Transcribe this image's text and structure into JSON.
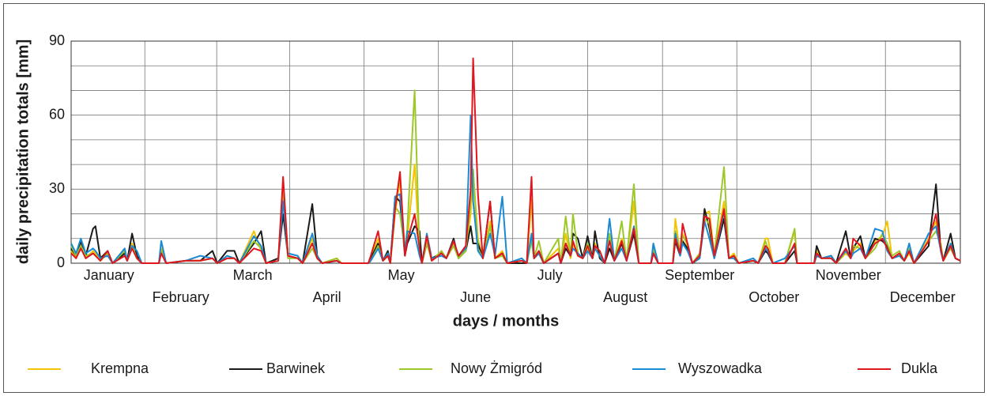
{
  "chart_data": {
    "type": "line",
    "x_label": "days / months",
    "y_label": "daily precipitation totals [mm]",
    "xlim": [
      0,
      365
    ],
    "ylim": [
      0,
      90
    ],
    "yticks": [
      0,
      30,
      60,
      90
    ],
    "y_minor_gridlines": [
      10,
      20,
      40,
      50,
      70,
      80
    ],
    "xticks": [
      {
        "value": 15.5,
        "label": "January"
      },
      {
        "value": 45,
        "label": "February"
      },
      {
        "value": 74.5,
        "label": "March"
      },
      {
        "value": 105,
        "label": "April"
      },
      {
        "value": 135.5,
        "label": "May"
      },
      {
        "value": 166,
        "label": "June"
      },
      {
        "value": 196.5,
        "label": "July"
      },
      {
        "value": 227.5,
        "label": "August"
      },
      {
        "value": 258,
        "label": "September"
      },
      {
        "value": 288.5,
        "label": "October"
      },
      {
        "value": 319,
        "label": "November"
      },
      {
        "value": 349.5,
        "label": "December"
      }
    ],
    "grid": true,
    "legend": "bottom",
    "x": [
      0,
      2,
      4,
      6,
      9,
      10,
      12,
      15,
      17,
      22,
      23,
      25,
      27,
      29,
      36,
      37,
      39,
      47,
      53,
      58,
      60,
      64,
      67,
      69,
      75,
      78,
      80,
      85,
      87,
      89,
      93,
      95,
      99,
      101,
      103,
      109,
      111,
      122,
      123,
      126,
      128,
      130,
      131,
      133,
      135,
      137,
      138,
      141,
      143,
      144,
      146,
      148,
      152,
      154,
      157,
      159,
      162,
      164,
      165,
      167,
      169,
      172,
      174,
      177,
      179,
      185,
      187,
      189,
      190,
      192,
      194,
      200,
      201,
      203,
      205,
      206,
      208,
      210,
      212,
      214,
      215,
      217,
      219,
      221,
      223,
      226,
      228,
      231,
      233,
      238,
      239,
      241,
      247,
      248,
      250,
      251,
      253,
      255,
      258,
      260,
      262,
      264,
      268,
      270,
      272,
      274,
      280,
      282,
      285,
      286,
      288,
      293,
      297,
      298,
      305,
      306,
      308,
      312,
      314,
      318,
      320,
      321,
      324,
      326,
      330,
      333,
      335,
      337,
      340,
      342,
      344,
      346,
      352,
      355,
      357,
      358,
      361,
      363,
      365
    ],
    "series": [
      {
        "name": "Krempna",
        "color": "#f5c400",
        "values": [
          5,
          2,
          8,
          2,
          5,
          4,
          1,
          4,
          0,
          5,
          1,
          8,
          2,
          0,
          0,
          6,
          0,
          1,
          1,
          2,
          0,
          2,
          2,
          0,
          13,
          5,
          0,
          1,
          33,
          3,
          2,
          0,
          10,
          2,
          0,
          2,
          0,
          0,
          2,
          10,
          1,
          3,
          0,
          20,
          34,
          4,
          10,
          40,
          5,
          0,
          9,
          1,
          5,
          2,
          8,
          2,
          6,
          20,
          37,
          10,
          2,
          17,
          2,
          5,
          0,
          1,
          0,
          26,
          2,
          5,
          0,
          6,
          0,
          12,
          2,
          8,
          3,
          2,
          6,
          2,
          8,
          3,
          0,
          10,
          1,
          10,
          1,
          25,
          0,
          0,
          5,
          0,
          0,
          18,
          4,
          12,
          7,
          0,
          3,
          20,
          21,
          3,
          25,
          2,
          4,
          0,
          1,
          0,
          10,
          10,
          0,
          0,
          13,
          0,
          0,
          5,
          2,
          3,
          0,
          4,
          2,
          5,
          8,
          2,
          9,
          11,
          17,
          2,
          4,
          1,
          4,
          0,
          10,
          17,
          6,
          1,
          8,
          2,
          1
        ]
      },
      {
        "name": "Barwinek",
        "color": "#1a1a1a",
        "values": [
          6,
          3,
          9,
          3,
          14,
          15,
          2,
          5,
          0,
          4,
          1,
          12,
          3,
          0,
          0,
          5,
          0,
          1,
          1,
          5,
          0,
          5,
          5,
          0,
          8,
          13,
          0,
          2,
          20,
          3,
          2,
          0,
          24,
          3,
          0,
          1,
          0,
          0,
          2,
          8,
          1,
          5,
          0,
          27,
          25,
          3,
          8,
          15,
          13,
          0,
          8,
          2,
          4,
          2,
          10,
          2,
          5,
          15,
          8,
          8,
          2,
          25,
          2,
          4,
          0,
          0,
          0,
          10,
          2,
          4,
          0,
          4,
          0,
          6,
          3,
          12,
          10,
          2,
          11,
          2,
          13,
          2,
          0,
          6,
          1,
          8,
          1,
          12,
          0,
          0,
          4,
          0,
          0,
          9,
          3,
          9,
          6,
          0,
          2,
          22,
          14,
          2,
          18,
          2,
          3,
          0,
          1,
          0,
          5,
          4,
          0,
          0,
          5,
          0,
          0,
          7,
          2,
          3,
          0,
          13,
          2,
          6,
          11,
          2,
          10,
          9,
          7,
          2,
          3,
          1,
          5,
          0,
          7,
          32,
          5,
          1,
          12,
          2,
          1
        ]
      },
      {
        "name": "Nowy Żmigród",
        "color": "#9dc82a",
        "values": [
          7,
          3,
          7,
          3,
          4,
          3,
          1,
          4,
          0,
          5,
          1,
          7,
          2,
          0,
          0,
          5,
          0,
          1,
          1,
          2,
          0,
          2,
          2,
          0,
          9,
          6,
          0,
          1,
          28,
          2,
          2,
          0,
          6,
          2,
          0,
          2,
          0,
          0,
          1,
          7,
          1,
          3,
          0,
          23,
          20,
          5,
          14,
          70,
          4,
          0,
          8,
          1,
          5,
          2,
          7,
          2,
          5,
          25,
          38,
          6,
          2,
          15,
          2,
          3,
          0,
          1,
          0,
          9,
          2,
          9,
          0,
          10,
          0,
          19,
          3,
          20,
          4,
          2,
          8,
          2,
          6,
          3,
          0,
          12,
          1,
          17,
          1,
          32,
          0,
          0,
          6,
          0,
          0,
          13,
          4,
          11,
          8,
          0,
          4,
          18,
          16,
          3,
          39,
          2,
          3,
          0,
          1,
          0,
          9,
          6,
          0,
          0,
          14,
          0,
          0,
          4,
          2,
          2,
          0,
          5,
          2,
          7,
          6,
          2,
          6,
          12,
          8,
          3,
          5,
          1,
          6,
          0,
          9,
          13,
          8,
          1,
          6,
          2,
          1
        ]
      },
      {
        "name": "Wyszowadka",
        "color": "#1a8ad4",
        "values": [
          8,
          4,
          10,
          4,
          6,
          5,
          2,
          3,
          0,
          6,
          1,
          7,
          5,
          0,
          0,
          9,
          0,
          1,
          3,
          2,
          0,
          3,
          2,
          0,
          11,
          7,
          0,
          1,
          25,
          4,
          3,
          0,
          12,
          3,
          0,
          1,
          0,
          0,
          1,
          6,
          1,
          4,
          0,
          27,
          28,
          4,
          13,
          12,
          3,
          0,
          12,
          2,
          3,
          2,
          9,
          3,
          6,
          60,
          25,
          5,
          2,
          12,
          3,
          27,
          0,
          2,
          0,
          12,
          2,
          4,
          0,
          4,
          0,
          8,
          3,
          6,
          4,
          2,
          5,
          2,
          6,
          3,
          0,
          18,
          1,
          6,
          1,
          15,
          0,
          0,
          8,
          0,
          0,
          12,
          3,
          8,
          5,
          0,
          2,
          17,
          10,
          2,
          21,
          2,
          2,
          0,
          2,
          0,
          6,
          5,
          0,
          2,
          7,
          0,
          0,
          3,
          2,
          3,
          0,
          5,
          2,
          4,
          6,
          2,
          14,
          13,
          5,
          2,
          3,
          1,
          8,
          0,
          12,
          15,
          5,
          1,
          8,
          2,
          1
        ]
      },
      {
        "name": "Dukla",
        "color": "#e0161e",
        "values": [
          4,
          2,
          6,
          2,
          4,
          3,
          1,
          5,
          0,
          3,
          1,
          6,
          2,
          0,
          0,
          4,
          0,
          1,
          1,
          2,
          0,
          2,
          2,
          0,
          6,
          5,
          0,
          1,
          35,
          3,
          2,
          0,
          8,
          2,
          0,
          1,
          0,
          0,
          3,
          13,
          1,
          3,
          0,
          22,
          37,
          3,
          9,
          20,
          6,
          0,
          11,
          1,
          4,
          2,
          9,
          3,
          7,
          30,
          83,
          28,
          2,
          25,
          2,
          4,
          0,
          1,
          0,
          35,
          2,
          5,
          0,
          4,
          0,
          8,
          3,
          9,
          3,
          2,
          7,
          2,
          7,
          5,
          0,
          9,
          1,
          9,
          1,
          14,
          0,
          0,
          4,
          0,
          0,
          10,
          4,
          16,
          8,
          0,
          3,
          19,
          18,
          3,
          22,
          2,
          3,
          0,
          1,
          0,
          7,
          6,
          0,
          0,
          8,
          0,
          0,
          4,
          2,
          2,
          0,
          6,
          2,
          10,
          7,
          2,
          8,
          10,
          6,
          2,
          4,
          1,
          5,
          0,
          9,
          20,
          6,
          1,
          7,
          2,
          1
        ]
      }
    ]
  }
}
